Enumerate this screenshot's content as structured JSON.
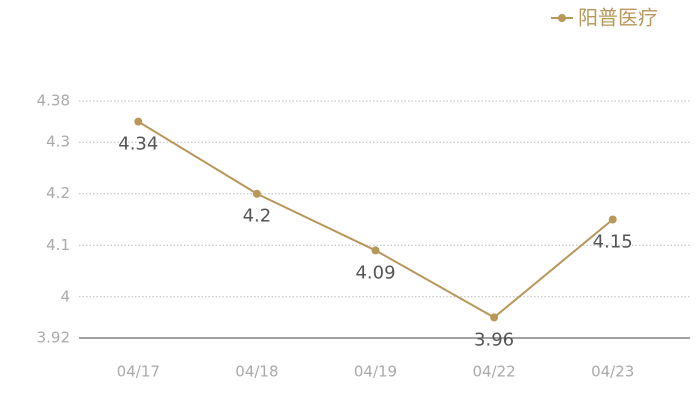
{
  "chart_data": {
    "type": "line",
    "categories": [
      "04/17",
      "04/18",
      "04/19",
      "04/22",
      "04/23"
    ],
    "series": [
      {
        "name": "阳普医疗",
        "color": "#b8975a",
        "values": [
          4.34,
          4.2,
          4.09,
          3.96,
          4.15
        ]
      }
    ],
    "ylim": [
      3.92,
      4.38
    ],
    "yticks": [
      3.92,
      4,
      4.1,
      4.2,
      4.3,
      4.38
    ],
    "grid": true,
    "legend": "top-right"
  }
}
